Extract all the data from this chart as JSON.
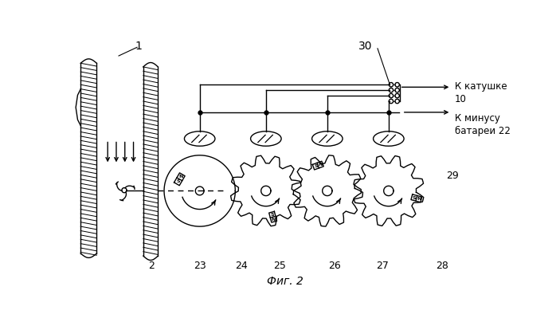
{
  "title": "Фиг. 2",
  "label_1": "1",
  "label_2": "2",
  "label_23": "23",
  "label_24": "24",
  "label_25": "25",
  "label_26": "26",
  "label_27": "27",
  "label_28": "28",
  "label_29": "29",
  "label_30": "30",
  "text_katushke": "К катушке\n10",
  "text_minus": "К минусу\nбатареи 22",
  "bg_color": "#ffffff",
  "line_color": "#000000"
}
